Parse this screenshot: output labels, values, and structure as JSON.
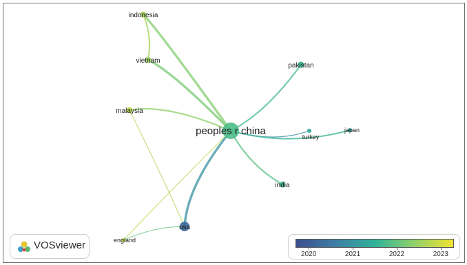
{
  "network": {
    "nodes": [
      {
        "id": "china",
        "label": "peoples r china",
        "year": 2021.8,
        "size": "large"
      },
      {
        "id": "indonesia",
        "label": "indonesia",
        "year": 2022.6,
        "size": "small"
      },
      {
        "id": "vietnam",
        "label": "vietnam",
        "year": 2022.5,
        "size": "small"
      },
      {
        "id": "malaysia",
        "label": "malaysia",
        "year": 2022.8,
        "size": "small"
      },
      {
        "id": "pakistan",
        "label": "pakistan",
        "year": 2021.6,
        "size": "small"
      },
      {
        "id": "turkey",
        "label": "turkey",
        "year": 2021.3,
        "size": "tiny"
      },
      {
        "id": "japan",
        "label": "japan",
        "year": 2021.2,
        "size": "tiny"
      },
      {
        "id": "india",
        "label": "india",
        "year": 2021.7,
        "size": "small"
      },
      {
        "id": "usa",
        "label": "usa",
        "year": 2020.2,
        "size": "medium"
      },
      {
        "id": "england",
        "label": "england",
        "year": 2022.9,
        "size": "tiny"
      }
    ],
    "links": [
      {
        "source": "china",
        "target": "indonesia",
        "year": 2022.3,
        "weight": "strong"
      },
      {
        "source": "china",
        "target": "vietnam",
        "year": 2022.2,
        "weight": "strong"
      },
      {
        "source": "china",
        "target": "malaysia",
        "year": 2022.4,
        "weight": "medium"
      },
      {
        "source": "china",
        "target": "pakistan",
        "year": 2021.7,
        "weight": "medium"
      },
      {
        "source": "china",
        "target": "turkey",
        "year": 2020.8,
        "weight": "weak"
      },
      {
        "source": "china",
        "target": "japan",
        "year": 2021.6,
        "weight": "medium"
      },
      {
        "source": "china",
        "target": "india",
        "year": 2021.9,
        "weight": "medium"
      },
      {
        "source": "china",
        "target": "usa",
        "year": 2020.9,
        "weight": "strong"
      },
      {
        "source": "china",
        "target": "england",
        "year": 2022.8,
        "weight": "weak"
      },
      {
        "source": "indonesia",
        "target": "vietnam",
        "year": 2022.6,
        "weight": "medium"
      },
      {
        "source": "malaysia",
        "target": "usa",
        "year": 2022.7,
        "weight": "weak"
      },
      {
        "source": "usa",
        "target": "england",
        "year": 2022.0,
        "weight": "weak"
      }
    ]
  },
  "brand": {
    "name": "VOSviewer"
  },
  "scale": {
    "ticks": [
      2020,
      2021,
      2022,
      2023
    ],
    "range": [
      2019.7,
      2023.3
    ],
    "colors": [
      "#3b4d8f",
      "#3e7fa6",
      "#2fb29a",
      "#8fd06a",
      "#f2e332"
    ]
  }
}
